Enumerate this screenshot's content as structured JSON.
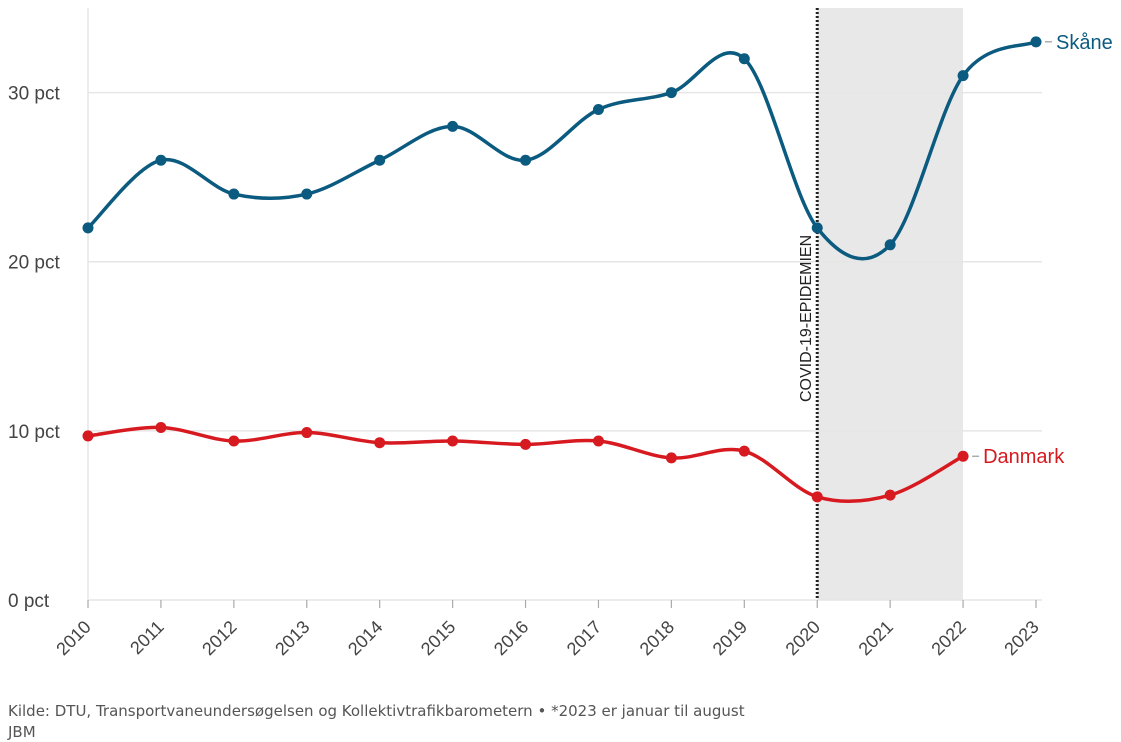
{
  "chart_data": {
    "type": "line",
    "x": [
      "2010",
      "2011",
      "2012",
      "2013",
      "2014",
      "2015",
      "2016",
      "2017",
      "2018",
      "2019",
      "2020",
      "2021",
      "2022",
      "2023"
    ],
    "ylim": [
      0,
      35
    ],
    "yticks": [
      0,
      10,
      20,
      30
    ],
    "ytick_labels": [
      "0 pct",
      "10 pct",
      "20 pct",
      "30 pct"
    ],
    "grid": true,
    "series": [
      {
        "name": "Skåne",
        "color": "#0b5a7f",
        "values": [
          22,
          26,
          24,
          24,
          26,
          28,
          26,
          29,
          30,
          32,
          22,
          21,
          31,
          33
        ]
      },
      {
        "name": "Danmark",
        "color": "#d71920",
        "values": [
          9.7,
          10.2,
          9.4,
          9.9,
          9.3,
          9.4,
          9.2,
          9.4,
          8.4,
          8.8,
          6.1,
          6.2,
          8.5,
          null
        ]
      }
    ],
    "annotation": {
      "label": "COVID-19-EPIDEMIEN",
      "shade_from": "2020",
      "shade_to": "2022",
      "line_at": "2020"
    }
  },
  "footer": {
    "source": "Kilde: DTU, Transportvaneundersøgelsen og Kollektivtrafikbarometern • *2023 er januar til august",
    "byline": "JBM"
  },
  "colors": {
    "grid": "#e6e6e6",
    "shade": "#e8e8e8",
    "axis_text": "#444444"
  }
}
